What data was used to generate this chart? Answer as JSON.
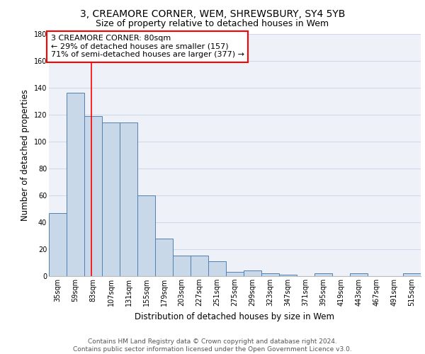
{
  "title1": "3, CREAMORE CORNER, WEM, SHREWSBURY, SY4 5YB",
  "title2": "Size of property relative to detached houses in Wem",
  "xlabel": "Distribution of detached houses by size in Wem",
  "ylabel": "Number of detached properties",
  "categories": [
    "35sqm",
    "59sqm",
    "83sqm",
    "107sqm",
    "131sqm",
    "155sqm",
    "179sqm",
    "203sqm",
    "227sqm",
    "251sqm",
    "275sqm",
    "299sqm",
    "323sqm",
    "347sqm",
    "371sqm",
    "395sqm",
    "419sqm",
    "443sqm",
    "467sqm",
    "491sqm",
    "515sqm"
  ],
  "values": [
    47,
    136,
    119,
    114,
    114,
    60,
    28,
    15,
    15,
    11,
    3,
    4,
    2,
    1,
    0,
    2,
    0,
    2,
    0,
    0,
    2
  ],
  "bar_color": "#c8d8e8",
  "bar_edge_color": "#5080b0",
  "grid_color": "#d0d8e8",
  "background_color": "#eef2f8",
  "annotation_box_text": "3 CREAMORE CORNER: 80sqm\n← 29% of detached houses are smaller (157)\n71% of semi-detached houses are larger (377) →",
  "ylim": [
    0,
    180
  ],
  "yticks": [
    0,
    20,
    40,
    60,
    80,
    100,
    120,
    140,
    160,
    180
  ],
  "footer": "Contains HM Land Registry data © Crown copyright and database right 2024.\nContains public sector information licensed under the Open Government Licence v3.0.",
  "title1_fontsize": 10,
  "title2_fontsize": 9,
  "xlabel_fontsize": 8.5,
  "ylabel_fontsize": 8.5,
  "tick_fontsize": 7,
  "annotation_fontsize": 8,
  "footer_fontsize": 6.5
}
